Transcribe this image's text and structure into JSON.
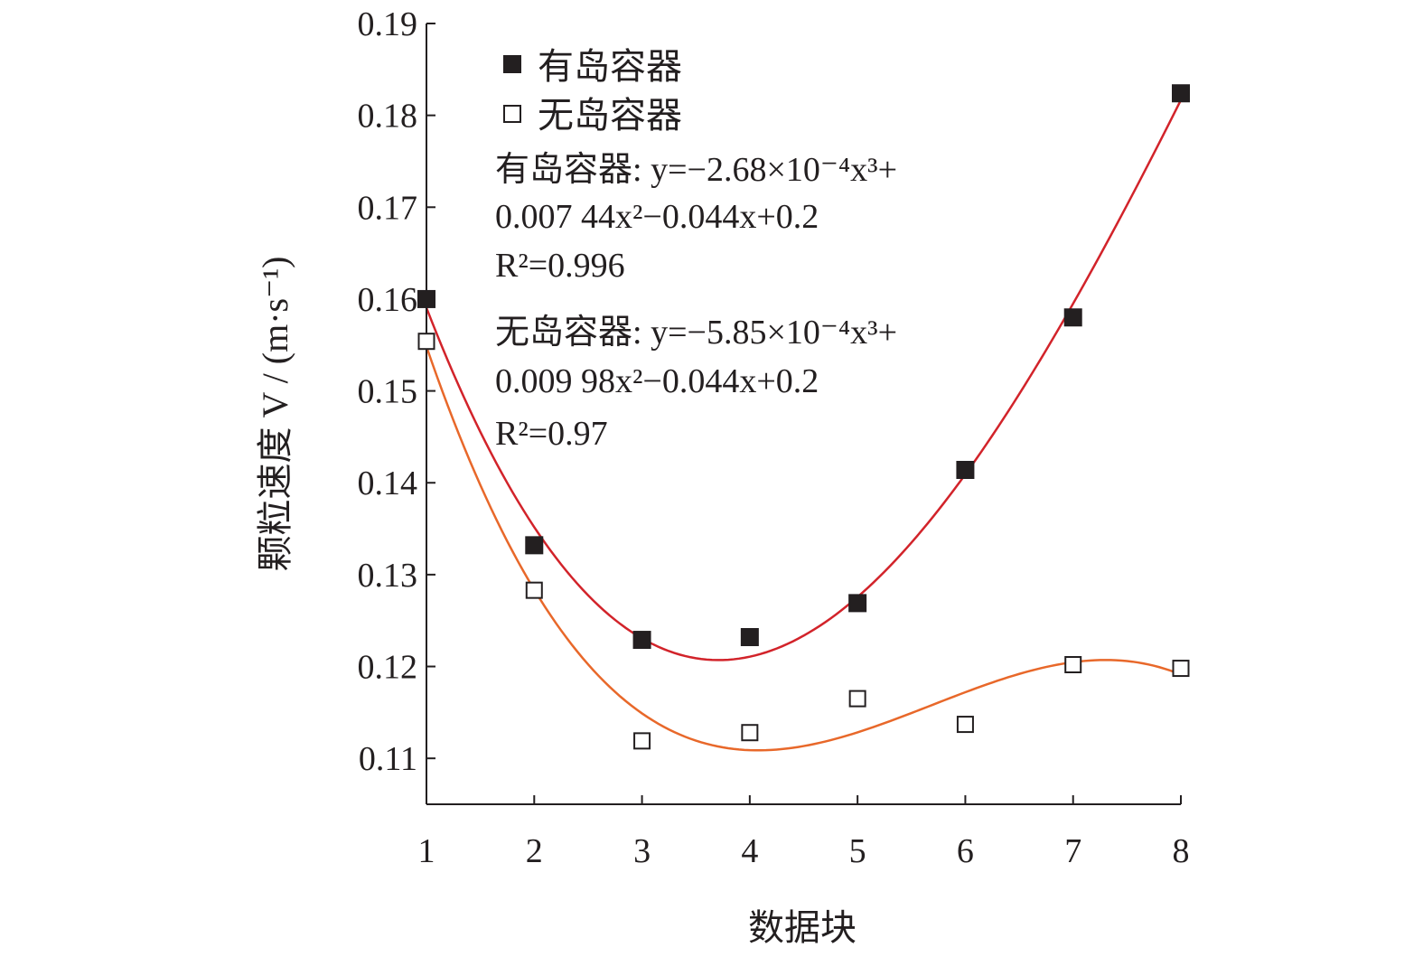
{
  "chart_data": {
    "type": "scatter",
    "xlabel": "数据块",
    "ylabel": "颗粒速度 V / (m·s⁻¹)",
    "x": [
      1,
      2,
      3,
      4,
      5,
      6,
      7,
      8
    ],
    "xticks": [
      "1",
      "2",
      "3",
      "4",
      "5",
      "6",
      "7",
      "8"
    ],
    "xlim": [
      1,
      8
    ],
    "yticks": [
      "0.11",
      "0.12",
      "0.13",
      "0.14",
      "0.15",
      "0.16",
      "0.17",
      "0.18",
      "0.19"
    ],
    "ylim": [
      0.105,
      0.19
    ],
    "grid": false,
    "legend_position": "top-left",
    "series": [
      {
        "name": "有岛容器",
        "marker": "filled-square",
        "values": [
          0.16,
          0.1332,
          0.1229,
          0.1232,
          0.1269,
          0.1414,
          0.158,
          0.1824
        ],
        "fit_color": "#d2232a",
        "fit": {
          "label": "有岛容器",
          "equation_line1": "y=−2.68×10⁻⁴x³+",
          "equation_line2": "0.007 44x²−0.044x+0.2",
          "r2": "R²=0.996"
        }
      },
      {
        "name": "无岛容器",
        "marker": "open-square",
        "values": [
          0.1554,
          0.1283,
          0.1119,
          0.1128,
          0.1165,
          0.1137,
          0.1202,
          0.1198
        ],
        "fit_color": "#e8682a",
        "fit": {
          "label": "无岛容器",
          "equation_line1": "y=−5.85×10⁻⁴x³+",
          "equation_line2": "0.009 98x²−0.044x+0.2",
          "r2": "R²=0.97"
        }
      }
    ]
  }
}
